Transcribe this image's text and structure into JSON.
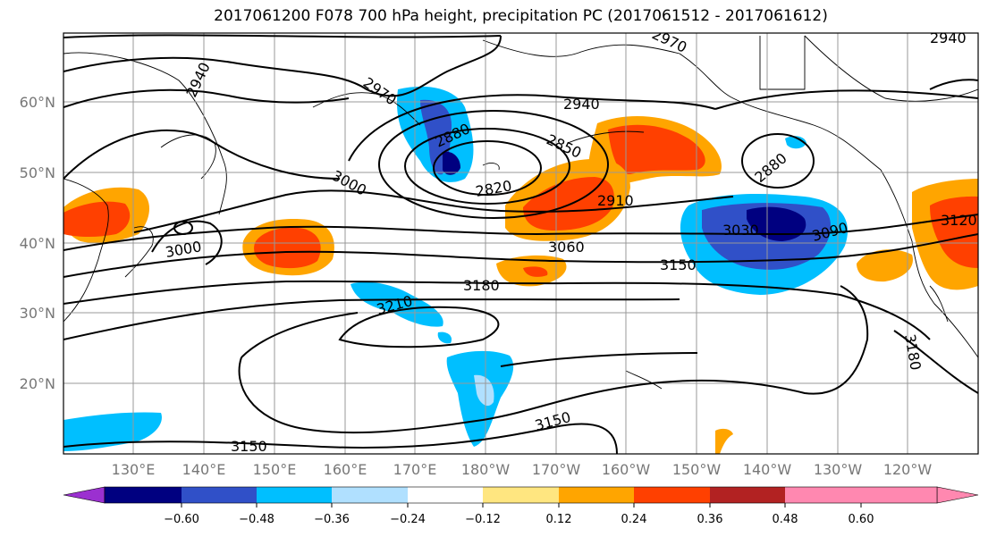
{
  "title": "2017061200 F078 700 hPa height, precipitation PC (2017061512 - 2017061612)",
  "lat_labels": [
    "60°N",
    "50°N",
    "40°N",
    "30°N",
    "20°N"
  ],
  "lon_labels": [
    "130°E",
    "140°E",
    "150°E",
    "160°E",
    "170°E",
    "180°W",
    "170°W",
    "160°W",
    "150°W",
    "140°W",
    "130°W",
    "120°W"
  ],
  "contour_labels": [
    "2940",
    "2970",
    "2940",
    "2880",
    "2850",
    "2820",
    "3000",
    "3000",
    "2910",
    "3060",
    "2880",
    "3030",
    "3090",
    "3150",
    "3180",
    "3120",
    "3210",
    "3150",
    "3150",
    "3180",
    "2970",
    "2940"
  ],
  "colorbar": {
    "ticks": [
      "−0.60",
      "−0.48",
      "−0.36",
      "−0.24",
      "−0.12",
      "0.12",
      "0.24",
      "0.36",
      "0.48",
      "0.60"
    ],
    "colors": [
      "#9b30d0",
      "#000080",
      "#3050c8",
      "#00bfff",
      "#b0e0ff",
      "#ffffff",
      "#ffe680",
      "#ffa500",
      "#ff4000",
      "#b22222",
      "#ff88b0",
      "#ff88b0"
    ]
  }
}
